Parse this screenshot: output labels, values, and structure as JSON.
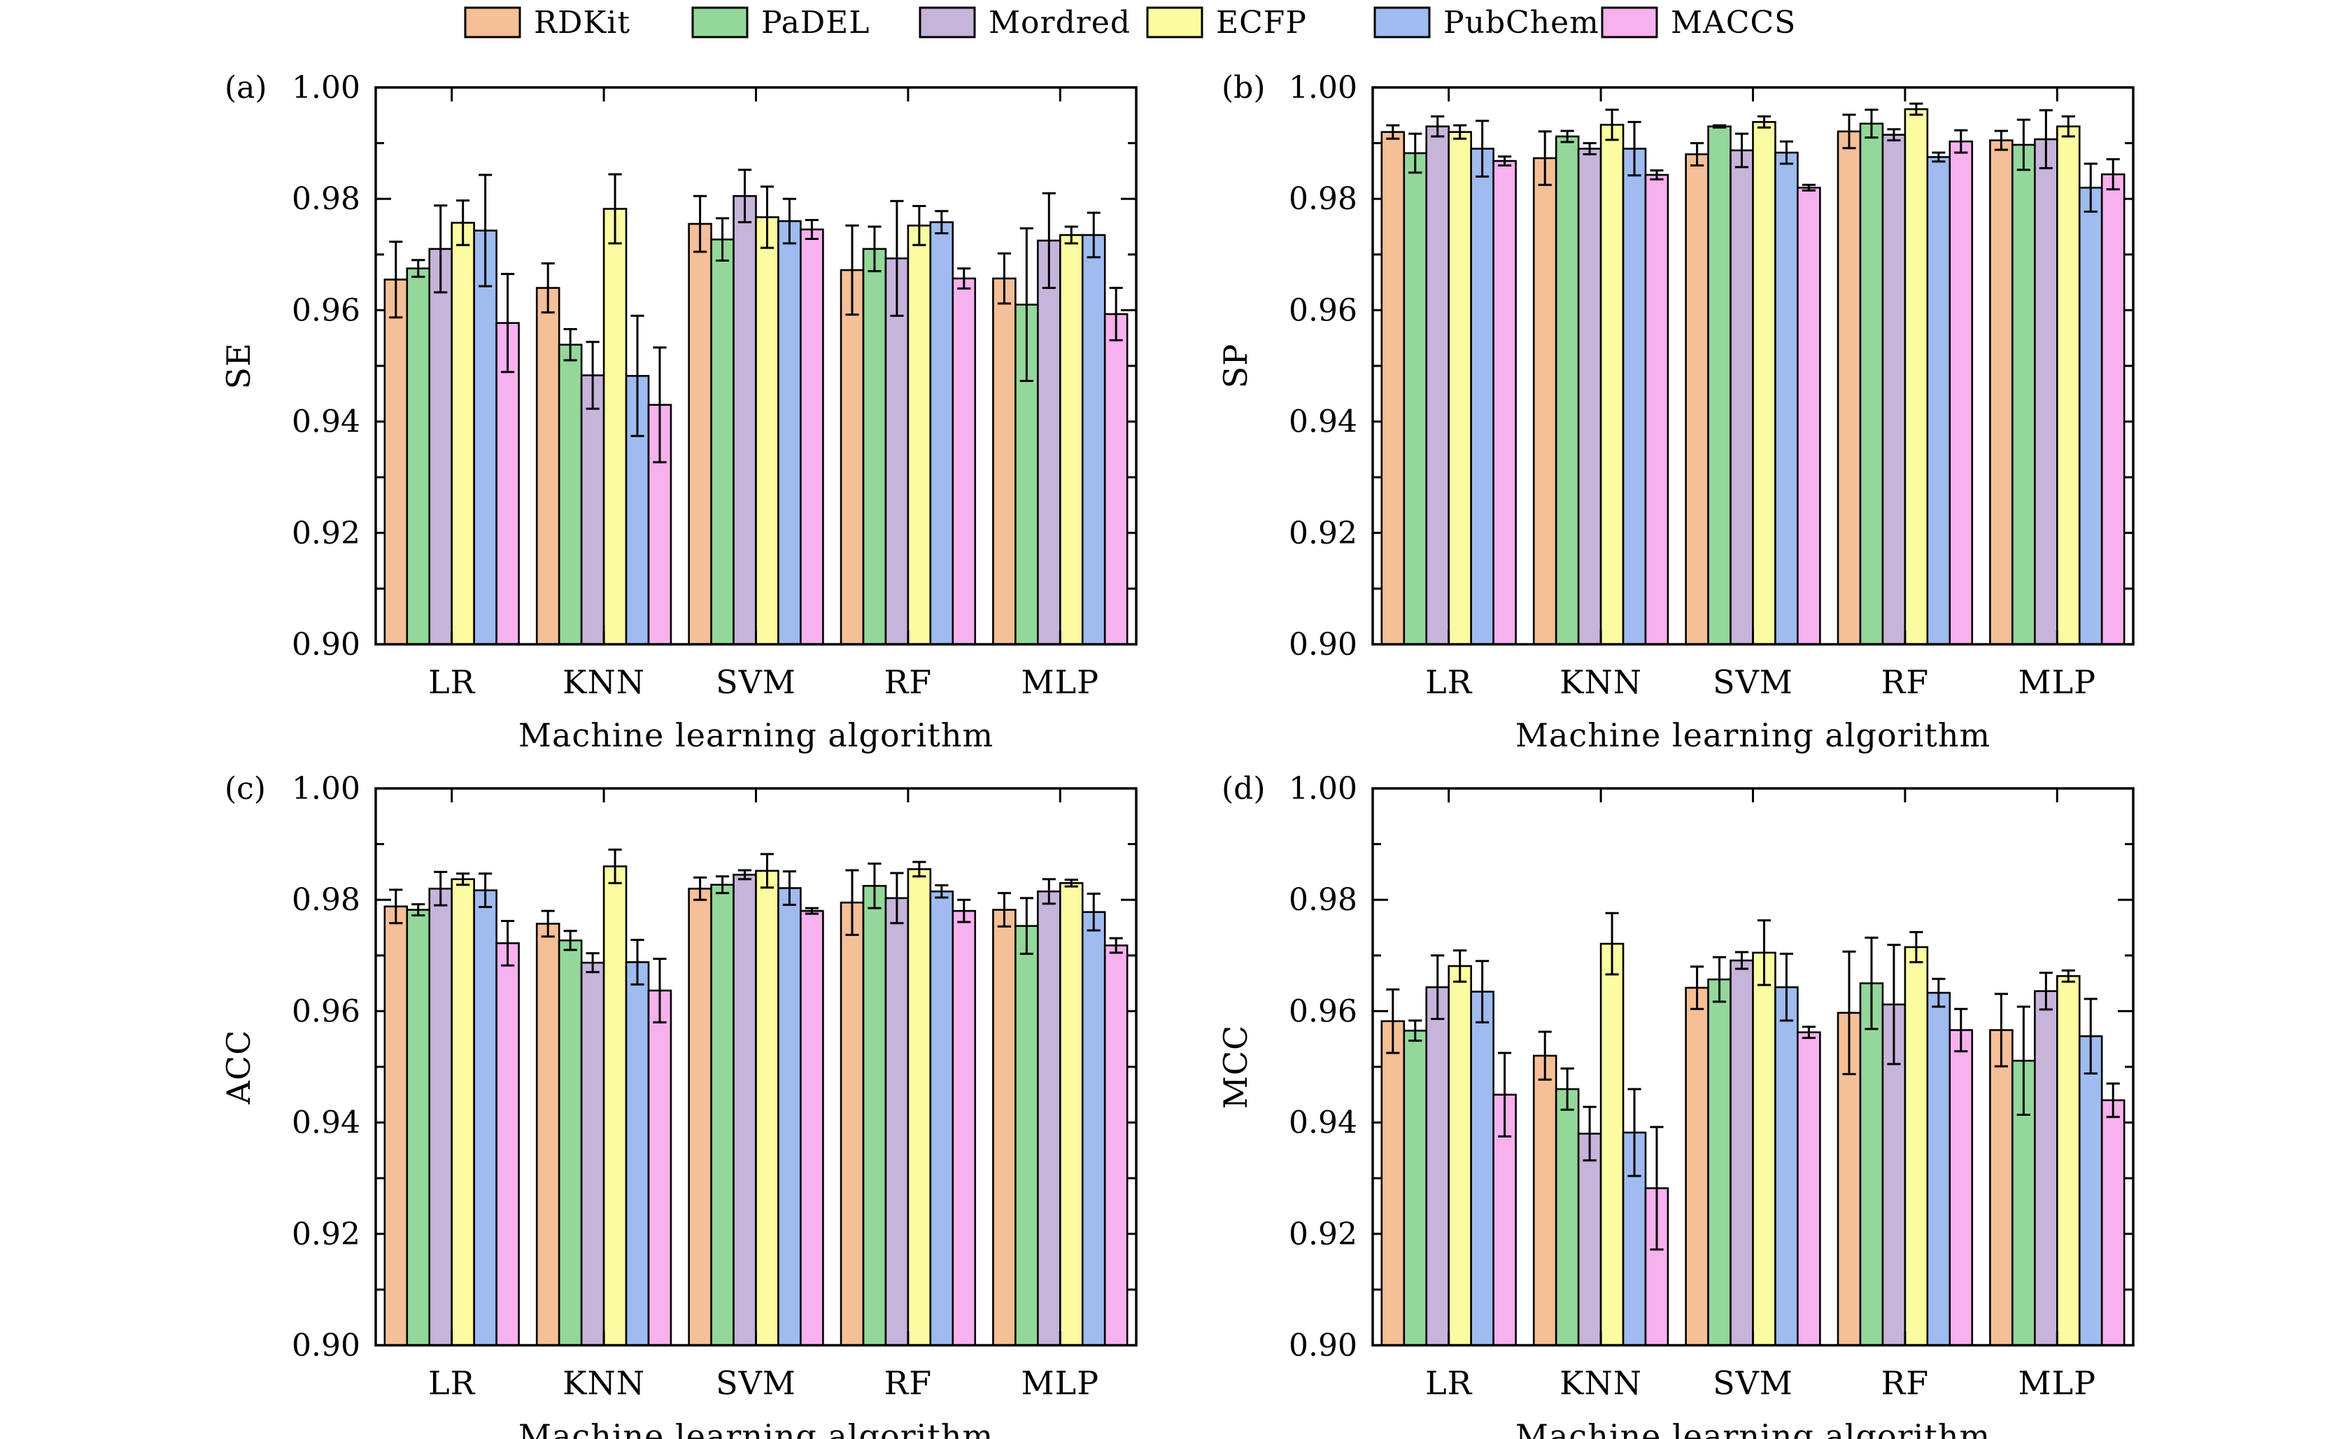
{
  "legend": {
    "entries": [
      "RDKit",
      "PaDEL",
      "Mordred",
      "ECFP",
      "PubChem",
      "MACCS"
    ]
  },
  "colors": {
    "RDKit": "#f5bf97",
    "PaDEL": "#93d89a",
    "Mordred": "#c6b4da",
    "ECFP": "#fbfba1",
    "PubChem": "#9fbbef",
    "MACCS": "#f7b1ee",
    "axis": "#000000"
  },
  "chart_data": [
    {
      "type": "bar",
      "tag": "(a)",
      "ylabel": "SE",
      "xlabel": "Machine learning algorithm",
      "ylim": [
        0.9,
        1.0
      ],
      "yticks": [
        "0.90",
        "0.92",
        "0.94",
        "0.96",
        "0.98",
        "1.00"
      ],
      "categories": [
        "LR",
        "KNN",
        "SVM",
        "RF",
        "MLP"
      ],
      "series": [
        {
          "name": "RDKit",
          "values": [
            0.9655,
            0.964,
            0.9755,
            0.9672,
            0.9657
          ],
          "errors": [
            0.0068,
            0.0044,
            0.005,
            0.008,
            0.0045
          ]
        },
        {
          "name": "PaDEL",
          "values": [
            0.9675,
            0.9538,
            0.9727,
            0.971,
            0.961
          ],
          "errors": [
            0.0015,
            0.0028,
            0.0038,
            0.004,
            0.0137
          ]
        },
        {
          "name": "Mordred",
          "values": [
            0.971,
            0.9483,
            0.9805,
            0.9693,
            0.9725
          ],
          "errors": [
            0.0078,
            0.006,
            0.0047,
            0.0103,
            0.0085
          ]
        },
        {
          "name": "ECFP",
          "values": [
            0.9757,
            0.9782,
            0.9767,
            0.9752,
            0.9735
          ],
          "errors": [
            0.004,
            0.0062,
            0.0055,
            0.0035,
            0.0015
          ]
        },
        {
          "name": "PubChem",
          "values": [
            0.9743,
            0.9482,
            0.976,
            0.9758,
            0.9735
          ],
          "errors": [
            0.01,
            0.0108,
            0.004,
            0.002,
            0.004
          ]
        },
        {
          "name": "MACCS",
          "values": [
            0.9577,
            0.943,
            0.9745,
            0.9657,
            0.9593
          ],
          "errors": [
            0.0088,
            0.0103,
            0.0017,
            0.0018,
            0.0047
          ]
        }
      ]
    },
    {
      "type": "bar",
      "tag": "(b)",
      "ylabel": "SP",
      "xlabel": "Machine learning algorithm",
      "ylim": [
        0.9,
        1.0
      ],
      "yticks": [
        "0.90",
        "0.92",
        "0.94",
        "0.96",
        "0.98",
        "1.00"
      ],
      "categories": [
        "LR",
        "KNN",
        "SVM",
        "RF",
        "MLP"
      ],
      "series": [
        {
          "name": "RDKit",
          "values": [
            0.992,
            0.9873,
            0.988,
            0.9921,
            0.9905
          ],
          "errors": [
            0.0012,
            0.0048,
            0.002,
            0.003,
            0.0017
          ]
        },
        {
          "name": "PaDEL",
          "values": [
            0.9882,
            0.9912,
            0.993,
            0.9935,
            0.9897
          ],
          "errors": [
            0.0035,
            0.001,
            0.0002,
            0.0025,
            0.0045
          ]
        },
        {
          "name": "Mordred",
          "values": [
            0.993,
            0.989,
            0.9887,
            0.9915,
            0.9907
          ],
          "errors": [
            0.0018,
            0.001,
            0.003,
            0.001,
            0.0052
          ]
        },
        {
          "name": "ECFP",
          "values": [
            0.992,
            0.9933,
            0.9938,
            0.9961,
            0.993
          ],
          "errors": [
            0.0012,
            0.0027,
            0.001,
            0.001,
            0.0018
          ]
        },
        {
          "name": "PubChem",
          "values": [
            0.989,
            0.989,
            0.9883,
            0.9875,
            0.982
          ],
          "errors": [
            0.005,
            0.0048,
            0.002,
            0.0008,
            0.0043
          ]
        },
        {
          "name": "MACCS",
          "values": [
            0.9868,
            0.9843,
            0.982,
            0.9903,
            0.9844
          ],
          "errors": [
            0.0008,
            0.0008,
            0.0005,
            0.002,
            0.0027
          ]
        }
      ]
    },
    {
      "type": "bar",
      "tag": "(c)",
      "ylabel": "ACC",
      "xlabel": "Machine learning algorithm",
      "ylim": [
        0.9,
        1.0
      ],
      "yticks": [
        "0.90",
        "0.92",
        "0.94",
        "0.96",
        "0.98",
        "1.00"
      ],
      "categories": [
        "LR",
        "KNN",
        "SVM",
        "RF",
        "MLP"
      ],
      "series": [
        {
          "name": "RDKit",
          "values": [
            0.9788,
            0.9757,
            0.982,
            0.9795,
            0.9782
          ],
          "errors": [
            0.003,
            0.0023,
            0.002,
            0.0058,
            0.003
          ]
        },
        {
          "name": "PaDEL",
          "values": [
            0.9782,
            0.9727,
            0.9827,
            0.9825,
            0.9753
          ],
          "errors": [
            0.001,
            0.0017,
            0.0015,
            0.004,
            0.005
          ]
        },
        {
          "name": "Mordred",
          "values": [
            0.982,
            0.9687,
            0.9845,
            0.9803,
            0.9815
          ],
          "errors": [
            0.003,
            0.0017,
            0.0008,
            0.0045,
            0.0022
          ]
        },
        {
          "name": "ECFP",
          "values": [
            0.9837,
            0.986,
            0.9852,
            0.9855,
            0.983
          ],
          "errors": [
            0.001,
            0.003,
            0.003,
            0.0013,
            0.0006
          ]
        },
        {
          "name": "PubChem",
          "values": [
            0.9817,
            0.9688,
            0.9821,
            0.9815,
            0.9778
          ],
          "errors": [
            0.003,
            0.004,
            0.003,
            0.0011,
            0.0033
          ]
        },
        {
          "name": "MACCS",
          "values": [
            0.9722,
            0.9637,
            0.978,
            0.978,
            0.9718
          ],
          "errors": [
            0.004,
            0.0057,
            0.0005,
            0.002,
            0.0013
          ]
        }
      ]
    },
    {
      "type": "bar",
      "tag": "(d)",
      "ylabel": "MCC",
      "xlabel": "Machine learning algorithm",
      "ylim": [
        0.9,
        1.0
      ],
      "yticks": [
        "0.90",
        "0.92",
        "0.94",
        "0.96",
        "0.98",
        "1.00"
      ],
      "categories": [
        "LR",
        "KNN",
        "SVM",
        "RF",
        "MLP"
      ],
      "series": [
        {
          "name": "RDKit",
          "values": [
            0.9582,
            0.952,
            0.9642,
            0.9597,
            0.9566
          ],
          "errors": [
            0.0057,
            0.0043,
            0.0038,
            0.011,
            0.0065
          ]
        },
        {
          "name": "PaDEL",
          "values": [
            0.9565,
            0.946,
            0.9657,
            0.965,
            0.9511
          ],
          "errors": [
            0.0018,
            0.0037,
            0.004,
            0.0082,
            0.0097
          ]
        },
        {
          "name": "Mordred",
          "values": [
            0.9643,
            0.938,
            0.9691,
            0.9612,
            0.9636
          ],
          "errors": [
            0.0057,
            0.0048,
            0.0015,
            0.0107,
            0.0033
          ]
        },
        {
          "name": "ECFP",
          "values": [
            0.9681,
            0.9721,
            0.9705,
            0.9715,
            0.9663
          ],
          "errors": [
            0.0028,
            0.0055,
            0.0058,
            0.0027,
            0.001
          ]
        },
        {
          "name": "PubChem",
          "values": [
            0.9635,
            0.9382,
            0.9643,
            0.9633,
            0.9555
          ],
          "errors": [
            0.0055,
            0.0078,
            0.006,
            0.0025,
            0.0067
          ]
        },
        {
          "name": "MACCS",
          "values": [
            0.945,
            0.9282,
            0.9562,
            0.9566,
            0.944
          ],
          "errors": [
            0.0075,
            0.011,
            0.001,
            0.0038,
            0.003
          ]
        }
      ]
    }
  ]
}
